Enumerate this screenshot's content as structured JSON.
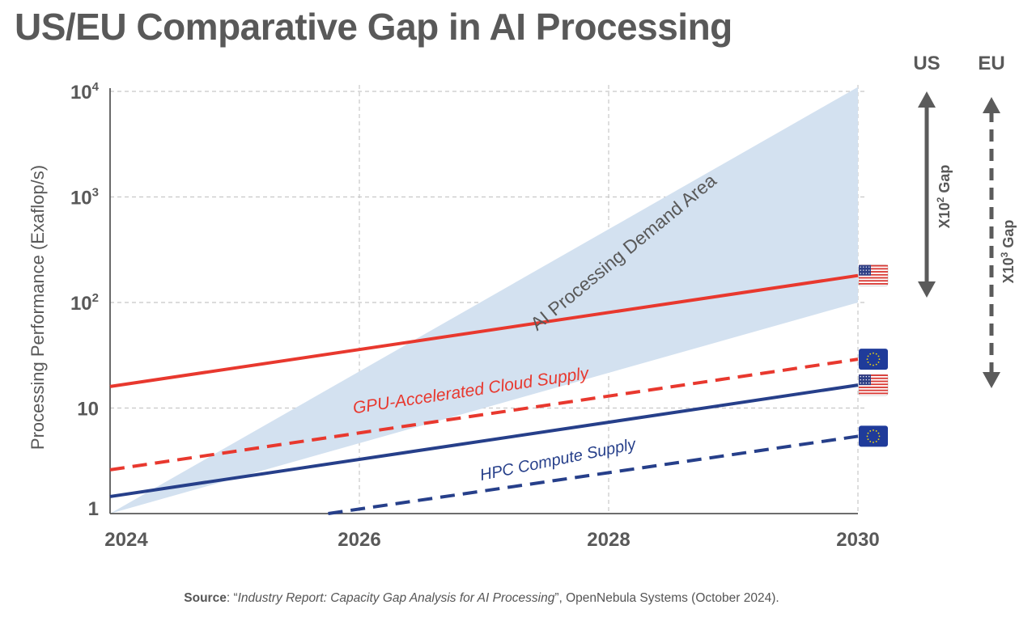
{
  "title": "US/EU Comparative Gap in AI Processing",
  "colors": {
    "us_line": "#e8382e",
    "eu_blue": "#263f8a",
    "demand_fill": "#d3e1f0",
    "text_dark": "#595959",
    "arrow_gray": "#5b5b5b",
    "grid": "#c8c8c8"
  },
  "chart_data": {
    "type": "line",
    "xlabel": "",
    "ylabel": "Processing Performance (Exaflop/s)",
    "yscale": "log",
    "xlim": [
      2024,
      2030
    ],
    "ylim": [
      1,
      10000
    ],
    "x_ticks": [
      {
        "value": 2024,
        "label": "2024"
      },
      {
        "value": 2026,
        "label": "2026"
      },
      {
        "value": 2028,
        "label": "2028"
      },
      {
        "value": 2030,
        "label": "2030"
      }
    ],
    "y_ticks": [
      {
        "value": 1,
        "label": "1",
        "exp": ""
      },
      {
        "value": 10,
        "label": "10",
        "exp": ""
      },
      {
        "value": 100,
        "label": "10",
        "exp": "2"
      },
      {
        "value": 1000,
        "label": "10",
        "exp": "3"
      },
      {
        "value": 10000,
        "label": "10",
        "exp": "4"
      }
    ],
    "grid": true,
    "demand_area": {
      "label": "AI Processing Demand Area",
      "start": [
        2024,
        1
      ],
      "upper_end": [
        2030,
        11000
      ],
      "lower_end": [
        2030,
        100
      ]
    },
    "series": [
      {
        "key": "gpu_us",
        "region": "US",
        "color": "#e8382e",
        "dash": false,
        "points": [
          [
            2024,
            16
          ],
          [
            2030,
            180
          ]
        ]
      },
      {
        "key": "gpu_eu",
        "region": "EU",
        "color": "#e8382e",
        "dash": true,
        "points": [
          [
            2024,
            2.6
          ],
          [
            2030,
            29
          ]
        ]
      },
      {
        "key": "hpc_us",
        "region": "US",
        "color": "#263f8a",
        "dash": false,
        "points": [
          [
            2024,
            1.45
          ],
          [
            2030,
            16.5
          ]
        ]
      },
      {
        "key": "hpc_eu",
        "region": "EU",
        "color": "#263f8a",
        "dash": true,
        "points": [
          [
            2025.75,
            1
          ],
          [
            2030,
            5.4
          ]
        ]
      }
    ],
    "annotations": [
      {
        "text": "GPU-Accelerated Cloud Supply",
        "color": "#e8382e",
        "x": 2026.9,
        "y": 13
      },
      {
        "text": "HPC Compute Supply",
        "color": "#263f8a",
        "x": 2027.6,
        "y": 2.9
      },
      {
        "text": "AI Processing Demand Area",
        "color": "#595959",
        "x": 2028.15,
        "y": 270
      }
    ],
    "gap_indicators": [
      {
        "region": "US",
        "gap_label": "X10",
        "gap_exp": "2",
        "gap_suffix": " Gap",
        "dash": false
      },
      {
        "region": "EU",
        "gap_label": "X10",
        "gap_exp": "3",
        "gap_suffix": " Gap",
        "dash": true
      }
    ]
  },
  "source": {
    "label": "Source",
    "sep": ": “",
    "report_title": "Industry Report: Capacity Gap Analysis for AI Processing",
    "rest": "”, OpenNebula Systems (October 2024)."
  }
}
